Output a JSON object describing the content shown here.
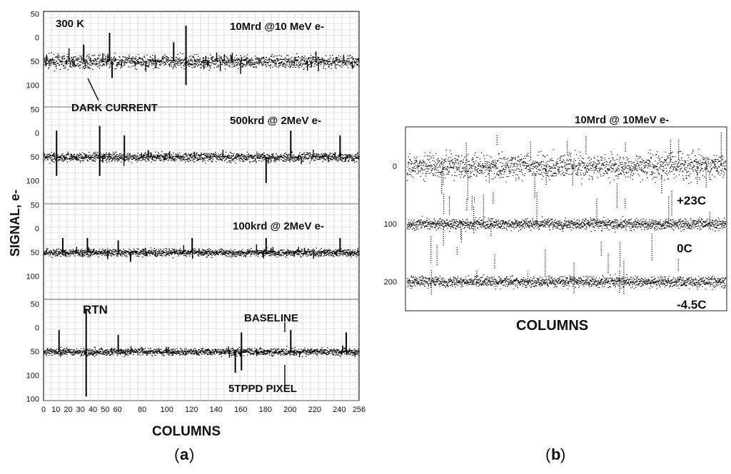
{
  "chart_data": [
    {
      "panel": "a",
      "type": "scatter",
      "caption_letter": "a",
      "xlabel": "COLUMNS",
      "ylabel": "SIGNAL, e-",
      "xlim": [
        0,
        256
      ],
      "x_ticks": [
        "0",
        "10",
        "20",
        "30",
        "40",
        "50",
        "60",
        "80",
        "100",
        "120",
        "140",
        "160",
        "180",
        "200",
        "220",
        "240",
        "256"
      ],
      "y_tick_labels": [
        [
          "100",
          "50",
          "0",
          "50"
        ],
        [
          "100",
          "50",
          "0",
          "50"
        ],
        [
          "100",
          "50",
          "0",
          "50"
        ],
        [
          "100",
          "50",
          "0",
          "50",
          "100"
        ]
      ],
      "temperature_label": "300 K",
      "series": [
        {
          "name": "10Mrd @10 MeV e-",
          "baseline": 0,
          "noise": 14,
          "spikes": [
            [
              53,
              60
            ],
            [
              55,
              -35
            ],
            [
              115,
              75
            ],
            [
              115,
              -50
            ],
            [
              105,
              40
            ],
            [
              32,
              35
            ]
          ]
        },
        {
          "name": "500krd @ 2MeV e-",
          "baseline": 0,
          "noise": 10,
          "spikes": [
            [
              10,
              55
            ],
            [
              10,
              -40
            ],
            [
              45,
              65
            ],
            [
              45,
              -40
            ],
            [
              65,
              45
            ],
            [
              180,
              -55
            ],
            [
              200,
              55
            ],
            [
              240,
              45
            ]
          ]
        },
        {
          "name": "100krd @ 2MeV e-",
          "baseline": 0,
          "noise": 8,
          "spikes": [
            [
              15,
              30
            ],
            [
              35,
              30
            ],
            [
              60,
              25
            ],
            [
              120,
              30
            ],
            [
              180,
              30
            ],
            [
              240,
              30
            ],
            [
              70,
              -20
            ]
          ]
        },
        {
          "name": "5TPPD PIXEL",
          "baseline": 0,
          "noise": 8,
          "spikes": [
            [
              34,
              90
            ],
            [
              34,
              -95
            ],
            [
              12,
              45
            ],
            [
              60,
              35
            ],
            [
              160,
              40
            ],
            [
              160,
              -40
            ],
            [
              200,
              45
            ],
            [
              245,
              40
            ],
            [
              155,
              -45
            ]
          ]
        }
      ],
      "annotations": {
        "dark_current": "DARK CURRENT",
        "rtn": "RTN",
        "baseline": "BASELINE"
      }
    },
    {
      "panel": "b",
      "type": "scatter",
      "caption_letter": "b",
      "title": "10Mrd @ 10MeV e-",
      "xlabel": "COLUMNS",
      "y_ticks": [
        "0",
        "100",
        "200"
      ],
      "series": [
        {
          "name": "+23C",
          "offset": 0,
          "noise": 22
        },
        {
          "name": "0C",
          "offset": 100,
          "noise": 10
        },
        {
          "name": "-4.5C",
          "offset": 200,
          "noise": 10
        }
      ]
    }
  ]
}
